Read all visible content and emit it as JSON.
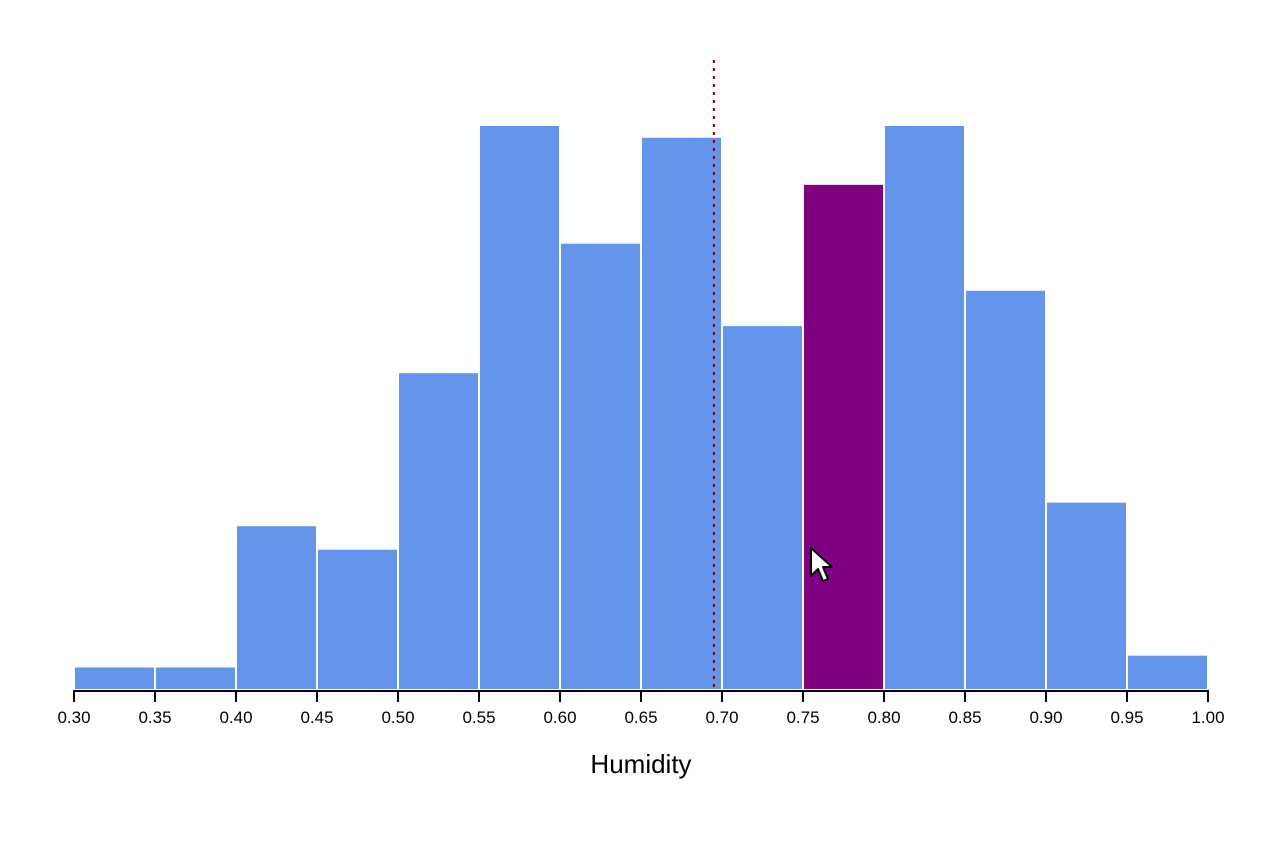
{
  "chart_data": {
    "type": "bar",
    "subtype": "histogram",
    "xlabel": "Humidity",
    "ylabel": "",
    "title": "",
    "xlim": [
      0.3,
      1.0
    ],
    "ylim": [
      0,
      48
    ],
    "bin_width": 0.05,
    "bins": [
      {
        "start": 0.3,
        "end": 0.35,
        "count": 2
      },
      {
        "start": 0.35,
        "end": 0.4,
        "count": 2
      },
      {
        "start": 0.4,
        "end": 0.45,
        "count": 14
      },
      {
        "start": 0.45,
        "end": 0.5,
        "count": 12
      },
      {
        "start": 0.5,
        "end": 0.55,
        "count": 27
      },
      {
        "start": 0.55,
        "end": 0.6,
        "count": 48
      },
      {
        "start": 0.6,
        "end": 0.65,
        "count": 38
      },
      {
        "start": 0.65,
        "end": 0.7,
        "count": 47
      },
      {
        "start": 0.7,
        "end": 0.75,
        "count": 31
      },
      {
        "start": 0.75,
        "end": 0.8,
        "count": 43
      },
      {
        "start": 0.8,
        "end": 0.85,
        "count": 48
      },
      {
        "start": 0.85,
        "end": 0.9,
        "count": 34
      },
      {
        "start": 0.9,
        "end": 0.95,
        "count": 16
      },
      {
        "start": 0.95,
        "end": 1.0,
        "count": 3
      }
    ],
    "highlighted_bin_index": 9,
    "reference_line": {
      "x": 0.695,
      "style": "dotted"
    },
    "xticks": [
      "0.30",
      "0.35",
      "0.40",
      "0.45",
      "0.50",
      "0.55",
      "0.60",
      "0.65",
      "0.70",
      "0.75",
      "0.80",
      "0.85",
      "0.90",
      "0.95",
      "1.00"
    ],
    "grid": false,
    "colors": {
      "bar": "#6495ED",
      "highlight": "#800080",
      "reference_line": "#8B0000",
      "bar_stroke": "#ffffff",
      "axis": "#000000"
    }
  }
}
